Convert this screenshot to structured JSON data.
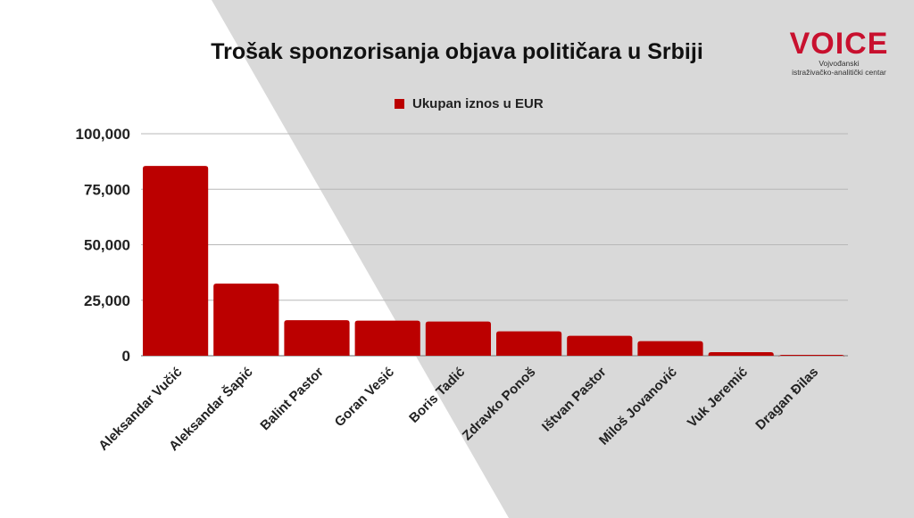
{
  "logo": {
    "name": "VOICE",
    "line1": "Vojvođanski",
    "line2": "istraživačko-analitički centar"
  },
  "chart_data": {
    "type": "bar",
    "title": "Trošak sponzorisanja objava političara u Srbiji",
    "legend": [
      "Ukupan iznos u EUR"
    ],
    "legend_position": "top",
    "categories": [
      "Aleksandar Vučić",
      "Aleksandar Šapić",
      "Balint Pastor",
      "Goran Vesić",
      "Boris Tadić",
      "Zdravko Ponoš",
      "Ištvan Pastor",
      "Miloš Jovanović",
      "Vuk Jeremić",
      "Dragan Đilas"
    ],
    "series": [
      {
        "name": "Ukupan iznos u EUR",
        "values": [
          85500,
          32500,
          16000,
          15800,
          15400,
          11000,
          9000,
          6600,
          1600,
          400
        ]
      }
    ],
    "ylim": [
      0,
      100000
    ],
    "yticks": [
      "0",
      "25,000",
      "50,000",
      "75,000",
      "100,000"
    ],
    "grid": true,
    "color": "#bb0000"
  }
}
